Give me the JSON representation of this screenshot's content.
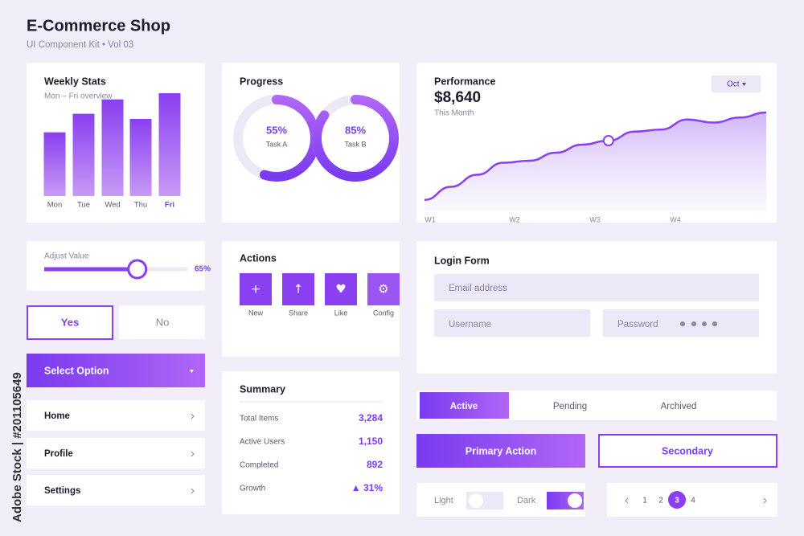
{
  "header": {
    "title": "E-Commerce Shop",
    "subtitle": "UI Component Kit • Vol 03"
  },
  "weekly_stats": {
    "title": "Weekly Stats",
    "subtitle": "Mon – Fri overview",
    "categories": [
      "Mon",
      "Tue",
      "Wed",
      "Thu",
      "Fri"
    ],
    "values": [
      62,
      80,
      94,
      75,
      100
    ],
    "ylim": [
      0,
      100
    ]
  },
  "progress": {
    "title": "Progress",
    "items": [
      {
        "value": 55,
        "label": "55%",
        "name": "Task A"
      },
      {
        "value": 85,
        "label": "85%",
        "name": "Task B"
      }
    ]
  },
  "performance": {
    "title": "Performance",
    "amount": "$8,640",
    "period": "This Month",
    "dropdown": "Oct",
    "x_labels": [
      "W1",
      "W2",
      "W3",
      "W4"
    ],
    "values": [
      5,
      18,
      30,
      42,
      44,
      52,
      60,
      64,
      73,
      75,
      85,
      82,
      87,
      92
    ],
    "ylim": [
      0,
      100
    ]
  },
  "slider": {
    "label": "Adjust Value",
    "value": 65,
    "value_label": "65%"
  },
  "choice": {
    "yes": "Yes",
    "no": "No"
  },
  "select": {
    "label": "Select Option"
  },
  "menu": [
    "Home",
    "Profile",
    "Settings"
  ],
  "actions": {
    "title": "Actions",
    "items": [
      {
        "icon": "+",
        "label": "New"
      },
      {
        "icon": "↑",
        "label": "Share"
      },
      {
        "icon": "♥",
        "label": "Like"
      },
      {
        "icon": "⚙",
        "label": "Config"
      }
    ]
  },
  "summary": {
    "title": "Summary",
    "rows": [
      [
        "Total Items",
        "3,284"
      ],
      [
        "Active Users",
        "1,150"
      ],
      [
        "Completed",
        "892"
      ],
      [
        "Growth",
        "▲ 31%"
      ]
    ]
  },
  "login": {
    "title": "Login Form",
    "email": "Email address",
    "username": "Username",
    "password": "Password"
  },
  "tabs": [
    "Active",
    "Pending",
    "Archived"
  ],
  "buttons": {
    "primary": "Primary Action",
    "secondary": "Secondary"
  },
  "theme": {
    "light": "Light",
    "dark": "Dark"
  },
  "pagination": [
    "1",
    "2",
    "3",
    "4"
  ],
  "watermark": "Adobe Stock | #201105649"
}
